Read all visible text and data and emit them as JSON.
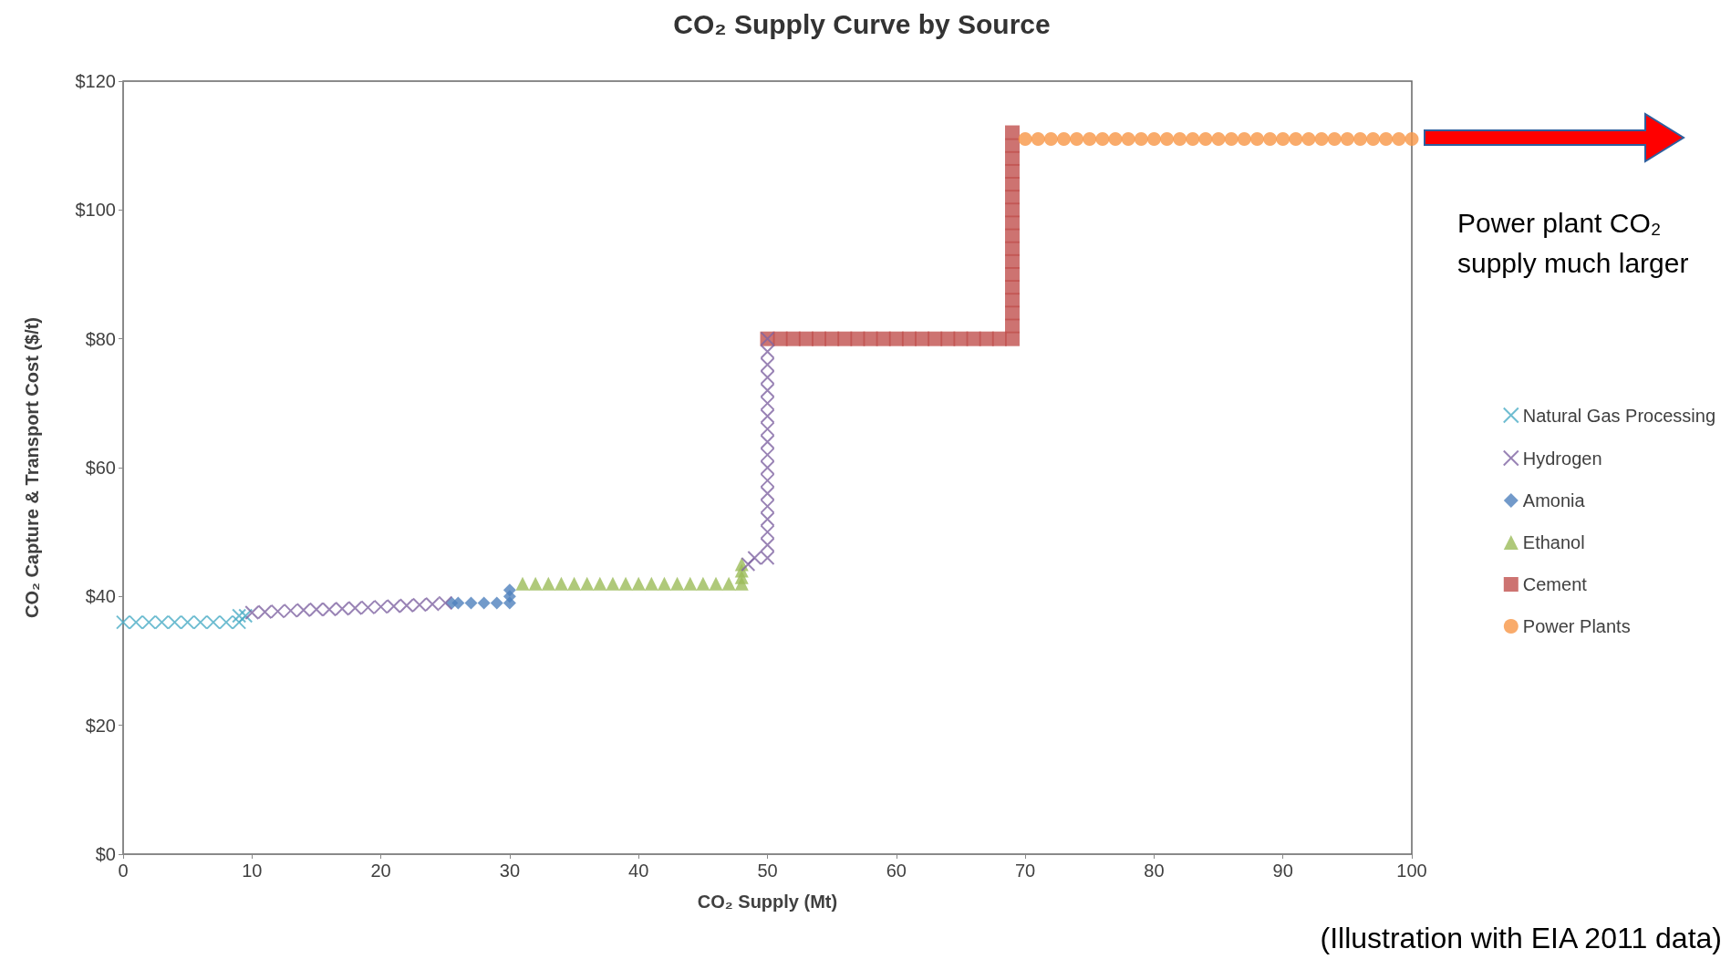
{
  "chart_data": {
    "type": "scatter",
    "title": "CO₂ Supply Curve by Source",
    "xlabel": "CO₂ Supply (Mt)",
    "ylabel": "CO₂ Capture & Transport Cost ($/t)",
    "xlim": [
      0,
      100
    ],
    "xticks": [
      0,
      10,
      20,
      30,
      40,
      50,
      60,
      70,
      80,
      90,
      100
    ],
    "ylim": [
      0,
      120
    ],
    "yticks": [
      {
        "value": 0,
        "label": "$0"
      },
      {
        "value": 20,
        "label": "$20"
      },
      {
        "value": 40,
        "label": "$40"
      },
      {
        "value": 60,
        "label": "$60"
      },
      {
        "value": 80,
        "label": "$80"
      },
      {
        "value": 100,
        "label": "$100"
      },
      {
        "value": 120,
        "label": "$120"
      }
    ],
    "grid": false,
    "legend": "right",
    "annotations": [
      {
        "text": "Power plant CO₂ supply much larger",
        "x": 100,
        "y": 111
      },
      "(Illustration with EIA 2011 data)"
    ],
    "series": [
      {
        "name": "Natural Gas Processing",
        "color": "#4bacc6",
        "marker": "cross",
        "x": [
          0,
          1,
          2,
          3,
          4,
          5,
          6,
          7,
          8,
          9,
          9,
          9.5
        ],
        "values": [
          36,
          36,
          36,
          36,
          36,
          36,
          36,
          36,
          36,
          36,
          37,
          37
        ]
      },
      {
        "name": "Hydrogen",
        "color": "#8064a2",
        "marker": "cross",
        "x": [
          10,
          11,
          12,
          13,
          14,
          15,
          16,
          17,
          18,
          19,
          20,
          21,
          22,
          23,
          24,
          25,
          48.5,
          49,
          50,
          50,
          50,
          50,
          50,
          50,
          50,
          50,
          50,
          50,
          50,
          50,
          50,
          50,
          50,
          50,
          50,
          50
        ],
        "values": [
          37.5,
          37.6,
          37.7,
          37.8,
          37.9,
          38,
          38,
          38.1,
          38.2,
          38.3,
          38.4,
          38.5,
          38.6,
          38.7,
          38.8,
          39,
          45,
          46,
          46,
          48,
          50,
          52,
          54,
          56,
          58,
          60,
          62,
          64,
          66,
          68,
          70,
          72,
          74,
          76,
          78,
          80
        ]
      },
      {
        "name": "Amonia",
        "color": "#4f81bd",
        "marker": "diamond",
        "x": [
          25.5,
          26,
          27,
          28,
          29,
          30,
          30,
          30
        ],
        "values": [
          39,
          39,
          39,
          39,
          39,
          39,
          40,
          41
        ]
      },
      {
        "name": "Ethanol",
        "color": "#9bbb59",
        "marker": "triangle",
        "x": [
          31,
          32,
          33,
          34,
          35,
          36,
          37,
          38,
          39,
          40,
          41,
          42,
          43,
          44,
          45,
          46,
          47,
          48,
          48,
          48,
          48
        ],
        "values": [
          42,
          42,
          42,
          42,
          42,
          42,
          42,
          42,
          42,
          42,
          42,
          42,
          42,
          42,
          42,
          42,
          42,
          42,
          43,
          44,
          45
        ]
      },
      {
        "name": "Cement",
        "color": "#c0504d",
        "marker": "square",
        "x": [
          50,
          51,
          52,
          53,
          54,
          55,
          56,
          57,
          58,
          59,
          60,
          61,
          62,
          63,
          64,
          65,
          66,
          67,
          68,
          69,
          69,
          69,
          69,
          69,
          69,
          69,
          69,
          69,
          69,
          69,
          69,
          69,
          69,
          69,
          69,
          69
        ],
        "values": [
          80,
          80,
          80,
          80,
          80,
          80,
          80,
          80,
          80,
          80,
          80,
          80,
          80,
          80,
          80,
          80,
          80,
          80,
          80,
          80,
          82,
          84,
          86,
          88,
          90,
          92,
          94,
          96,
          98,
          100,
          102,
          104,
          106,
          108,
          110,
          112
        ]
      },
      {
        "name": "Power Plants",
        "color": "#f79646",
        "marker": "circle",
        "x": [
          70,
          71,
          72,
          73,
          74,
          75,
          76,
          77,
          78,
          79,
          80,
          81,
          82,
          83,
          84,
          85,
          86,
          87,
          88,
          89,
          90,
          91,
          92,
          93,
          94,
          95,
          96,
          97,
          98,
          99,
          100
        ],
        "values": [
          111,
          111,
          111,
          111,
          111,
          111,
          111,
          111,
          111,
          111,
          111,
          111,
          111,
          111,
          111,
          111,
          111,
          111,
          111,
          111,
          111,
          111,
          111,
          111,
          111,
          111,
          111,
          111,
          111,
          111,
          111
        ]
      }
    ]
  }
}
